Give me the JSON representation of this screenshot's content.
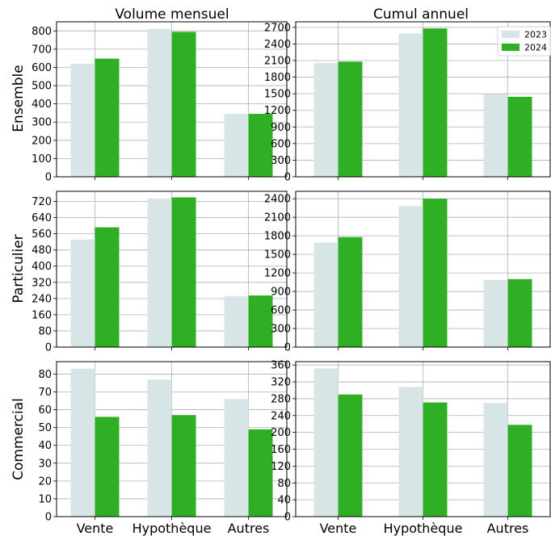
{
  "chart_data": {
    "type": "bar",
    "column_titles": [
      "Volume mensuel",
      "Cumul annuel"
    ],
    "row_titles": [
      "Ensemble",
      "Particulier",
      "Commercial"
    ],
    "categories": [
      "Vente",
      "Hypothèque",
      "Autres"
    ],
    "legend": {
      "placement": "top-right",
      "entries": [
        "2023",
        "2024"
      ]
    },
    "colors": {
      "2023": "#d8e5e7",
      "2024": "#2eaf24"
    },
    "grid": true,
    "panels": [
      {
        "row": "Ensemble",
        "column": "Volume mensuel",
        "yticks": [
          0,
          100,
          200,
          300,
          400,
          500,
          600,
          700,
          800
        ],
        "ylim": [
          0,
          850
        ],
        "series": [
          {
            "name": "2023",
            "values": [
              620,
              810,
              345
            ]
          },
          {
            "name": "2024",
            "values": [
              648,
              795,
              345
            ]
          }
        ]
      },
      {
        "row": "Ensemble",
        "column": "Cumul annuel",
        "yticks": [
          0,
          300,
          600,
          900,
          1200,
          1500,
          1800,
          2100,
          2400,
          2700
        ],
        "ylim": [
          0,
          2800
        ],
        "series": [
          {
            "name": "2023",
            "values": [
              2055,
              2590,
              1495
            ]
          },
          {
            "name": "2024",
            "values": [
              2080,
              2680,
              1445
            ]
          }
        ]
      },
      {
        "row": "Particulier",
        "column": "Volume mensuel",
        "yticks": [
          0,
          80,
          160,
          240,
          320,
          400,
          480,
          560,
          640,
          720
        ],
        "ylim": [
          0,
          770
        ],
        "series": [
          {
            "name": "2023",
            "values": [
              532,
              735,
              252
            ]
          },
          {
            "name": "2024",
            "values": [
              592,
              740,
              255
            ]
          }
        ]
      },
      {
        "row": "Particulier",
        "column": "Cumul annuel",
        "yticks": [
          0,
          300,
          600,
          900,
          1200,
          1500,
          1800,
          2100,
          2400
        ],
        "ylim": [
          0,
          2520
        ],
        "series": [
          {
            "name": "2023",
            "values": [
              1690,
              2280,
              1085
            ]
          },
          {
            "name": "2024",
            "values": [
              1780,
              2400,
              1100
            ]
          }
        ]
      },
      {
        "row": "Commercial",
        "column": "Volume mensuel",
        "yticks": [
          0,
          10,
          20,
          30,
          40,
          50,
          60,
          70,
          80
        ],
        "ylim": [
          0,
          87
        ],
        "series": [
          {
            "name": "2023",
            "values": [
              83,
              77,
              66
            ]
          },
          {
            "name": "2024",
            "values": [
              56,
              57,
              49
            ]
          }
        ]
      },
      {
        "row": "Commercial",
        "column": "Cumul annuel",
        "yticks": [
          0,
          40,
          80,
          120,
          160,
          200,
          240,
          280,
          320,
          360
        ],
        "ylim": [
          0,
          368
        ],
        "series": [
          {
            "name": "2023",
            "values": [
              352,
              308,
              270
            ]
          },
          {
            "name": "2024",
            "values": [
              290,
              271,
              218
            ]
          }
        ]
      }
    ]
  }
}
